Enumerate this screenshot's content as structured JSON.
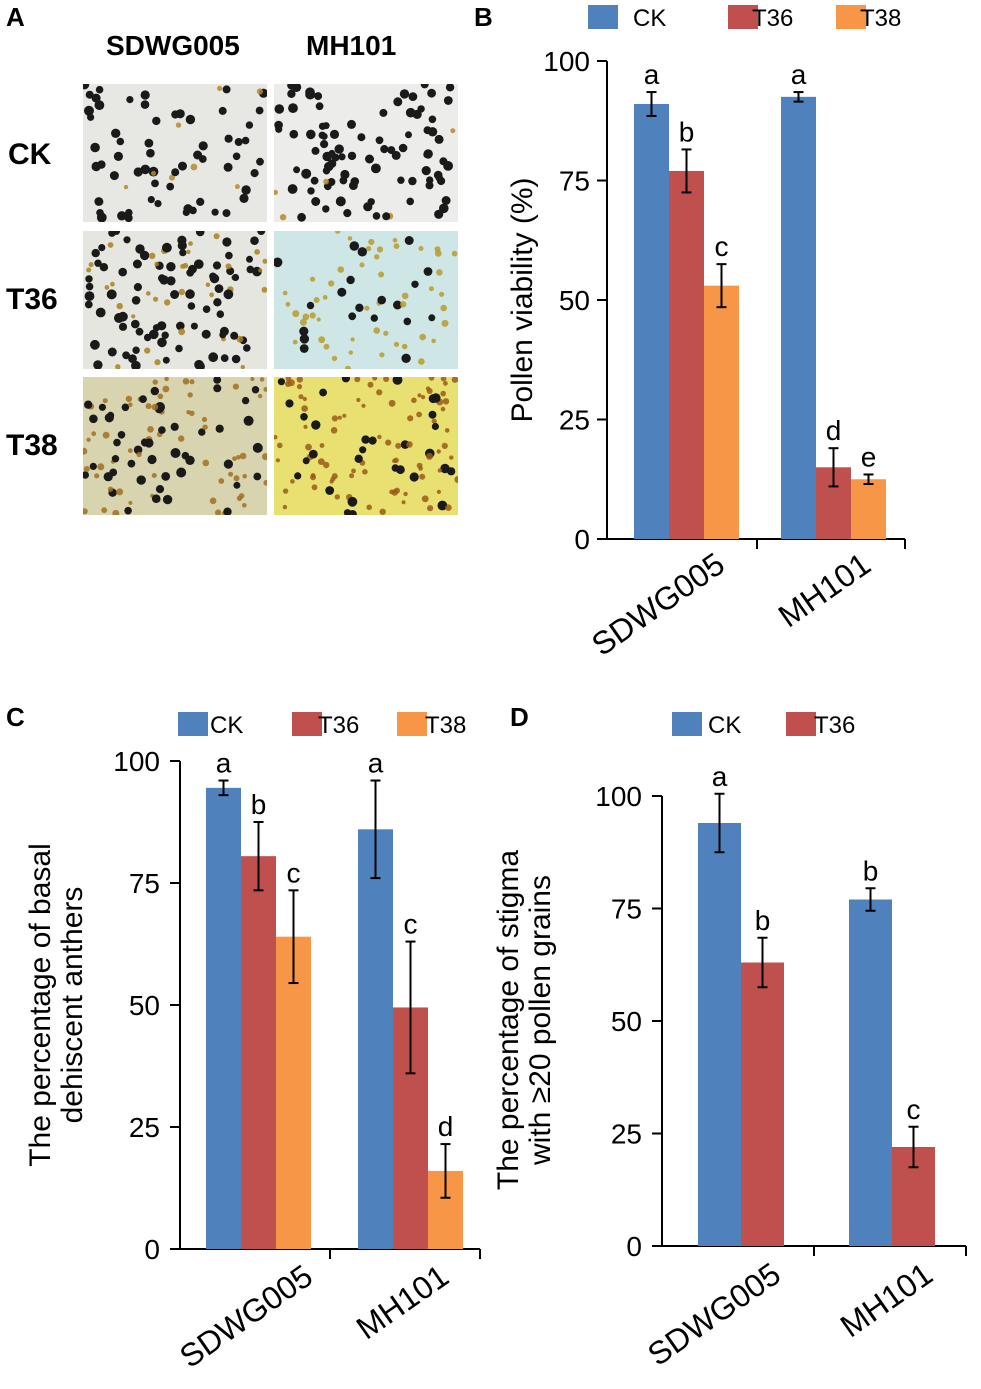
{
  "panels": {
    "a": {
      "label": "A",
      "columns": [
        "SDWG005",
        "MH101"
      ],
      "rows": [
        "CK",
        "T36",
        "T38"
      ]
    },
    "b": {
      "label": "B"
    },
    "c": {
      "label": "C"
    },
    "d": {
      "label": "D"
    }
  },
  "colors": {
    "CK": "#4f81bd",
    "T36": "#c0504d",
    "T38": "#f79646",
    "axis": "#000000"
  },
  "chart_data": [
    {
      "id": "B",
      "type": "bar",
      "title": "",
      "xlabel": "",
      "ylabel": "Pollen viability (%)",
      "ylim": [
        0,
        100
      ],
      "yticks": [
        0,
        25,
        50,
        75,
        100
      ],
      "categories": [
        "SDWG005",
        "MH101"
      ],
      "legend": [
        "CK",
        "T36",
        "T38"
      ],
      "legend_position": "top",
      "series": [
        {
          "name": "CK",
          "values": [
            91,
            92.5
          ],
          "errors": [
            2.5,
            1
          ],
          "letters": [
            "a",
            "a"
          ]
        },
        {
          "name": "T36",
          "values": [
            77,
            15
          ],
          "errors": [
            4.5,
            4
          ],
          "letters": [
            "b",
            "d"
          ]
        },
        {
          "name": "T38",
          "values": [
            53,
            12.5
          ],
          "errors": [
            4.5,
            1
          ],
          "letters": [
            "c",
            "e"
          ]
        }
      ]
    },
    {
      "id": "C",
      "type": "bar",
      "title": "",
      "xlabel": "",
      "ylabel": [
        "The percentage of basal",
        "dehiscent anthers"
      ],
      "ylim": [
        0,
        100
      ],
      "yticks": [
        0,
        25,
        50,
        75,
        100
      ],
      "categories": [
        "SDWG005",
        "MH101"
      ],
      "legend": [
        "CK",
        "T36",
        "T38"
      ],
      "legend_position": "top",
      "series": [
        {
          "name": "CK",
          "values": [
            94.5,
            86
          ],
          "errors": [
            1.5,
            10
          ],
          "letters": [
            "a",
            "a"
          ]
        },
        {
          "name": "T36",
          "values": [
            80.5,
            49.5
          ],
          "errors": [
            7,
            13.5
          ],
          "letters": [
            "b",
            "c"
          ]
        },
        {
          "name": "T38",
          "values": [
            64,
            16
          ],
          "errors": [
            9.5,
            5.5
          ],
          "letters": [
            "c",
            "d"
          ]
        }
      ]
    },
    {
      "id": "D",
      "type": "bar",
      "title": "",
      "xlabel": "",
      "ylabel": [
        "The percentage of stigma",
        "with ≥20 pollen grains"
      ],
      "ylim": [
        0,
        100
      ],
      "yticks": [
        0,
        25,
        50,
        75,
        100
      ],
      "categories": [
        "SDWG005",
        "MH101"
      ],
      "legend": [
        "CK",
        "T36"
      ],
      "legend_position": "top",
      "series": [
        {
          "name": "CK",
          "values": [
            94,
            77
          ],
          "errors": [
            6.5,
            2.5
          ],
          "letters": [
            "a",
            "b"
          ]
        },
        {
          "name": "T36",
          "values": [
            63,
            22
          ],
          "errors": [
            5.5,
            4.5
          ],
          "letters": [
            "b",
            "c"
          ]
        }
      ]
    }
  ]
}
